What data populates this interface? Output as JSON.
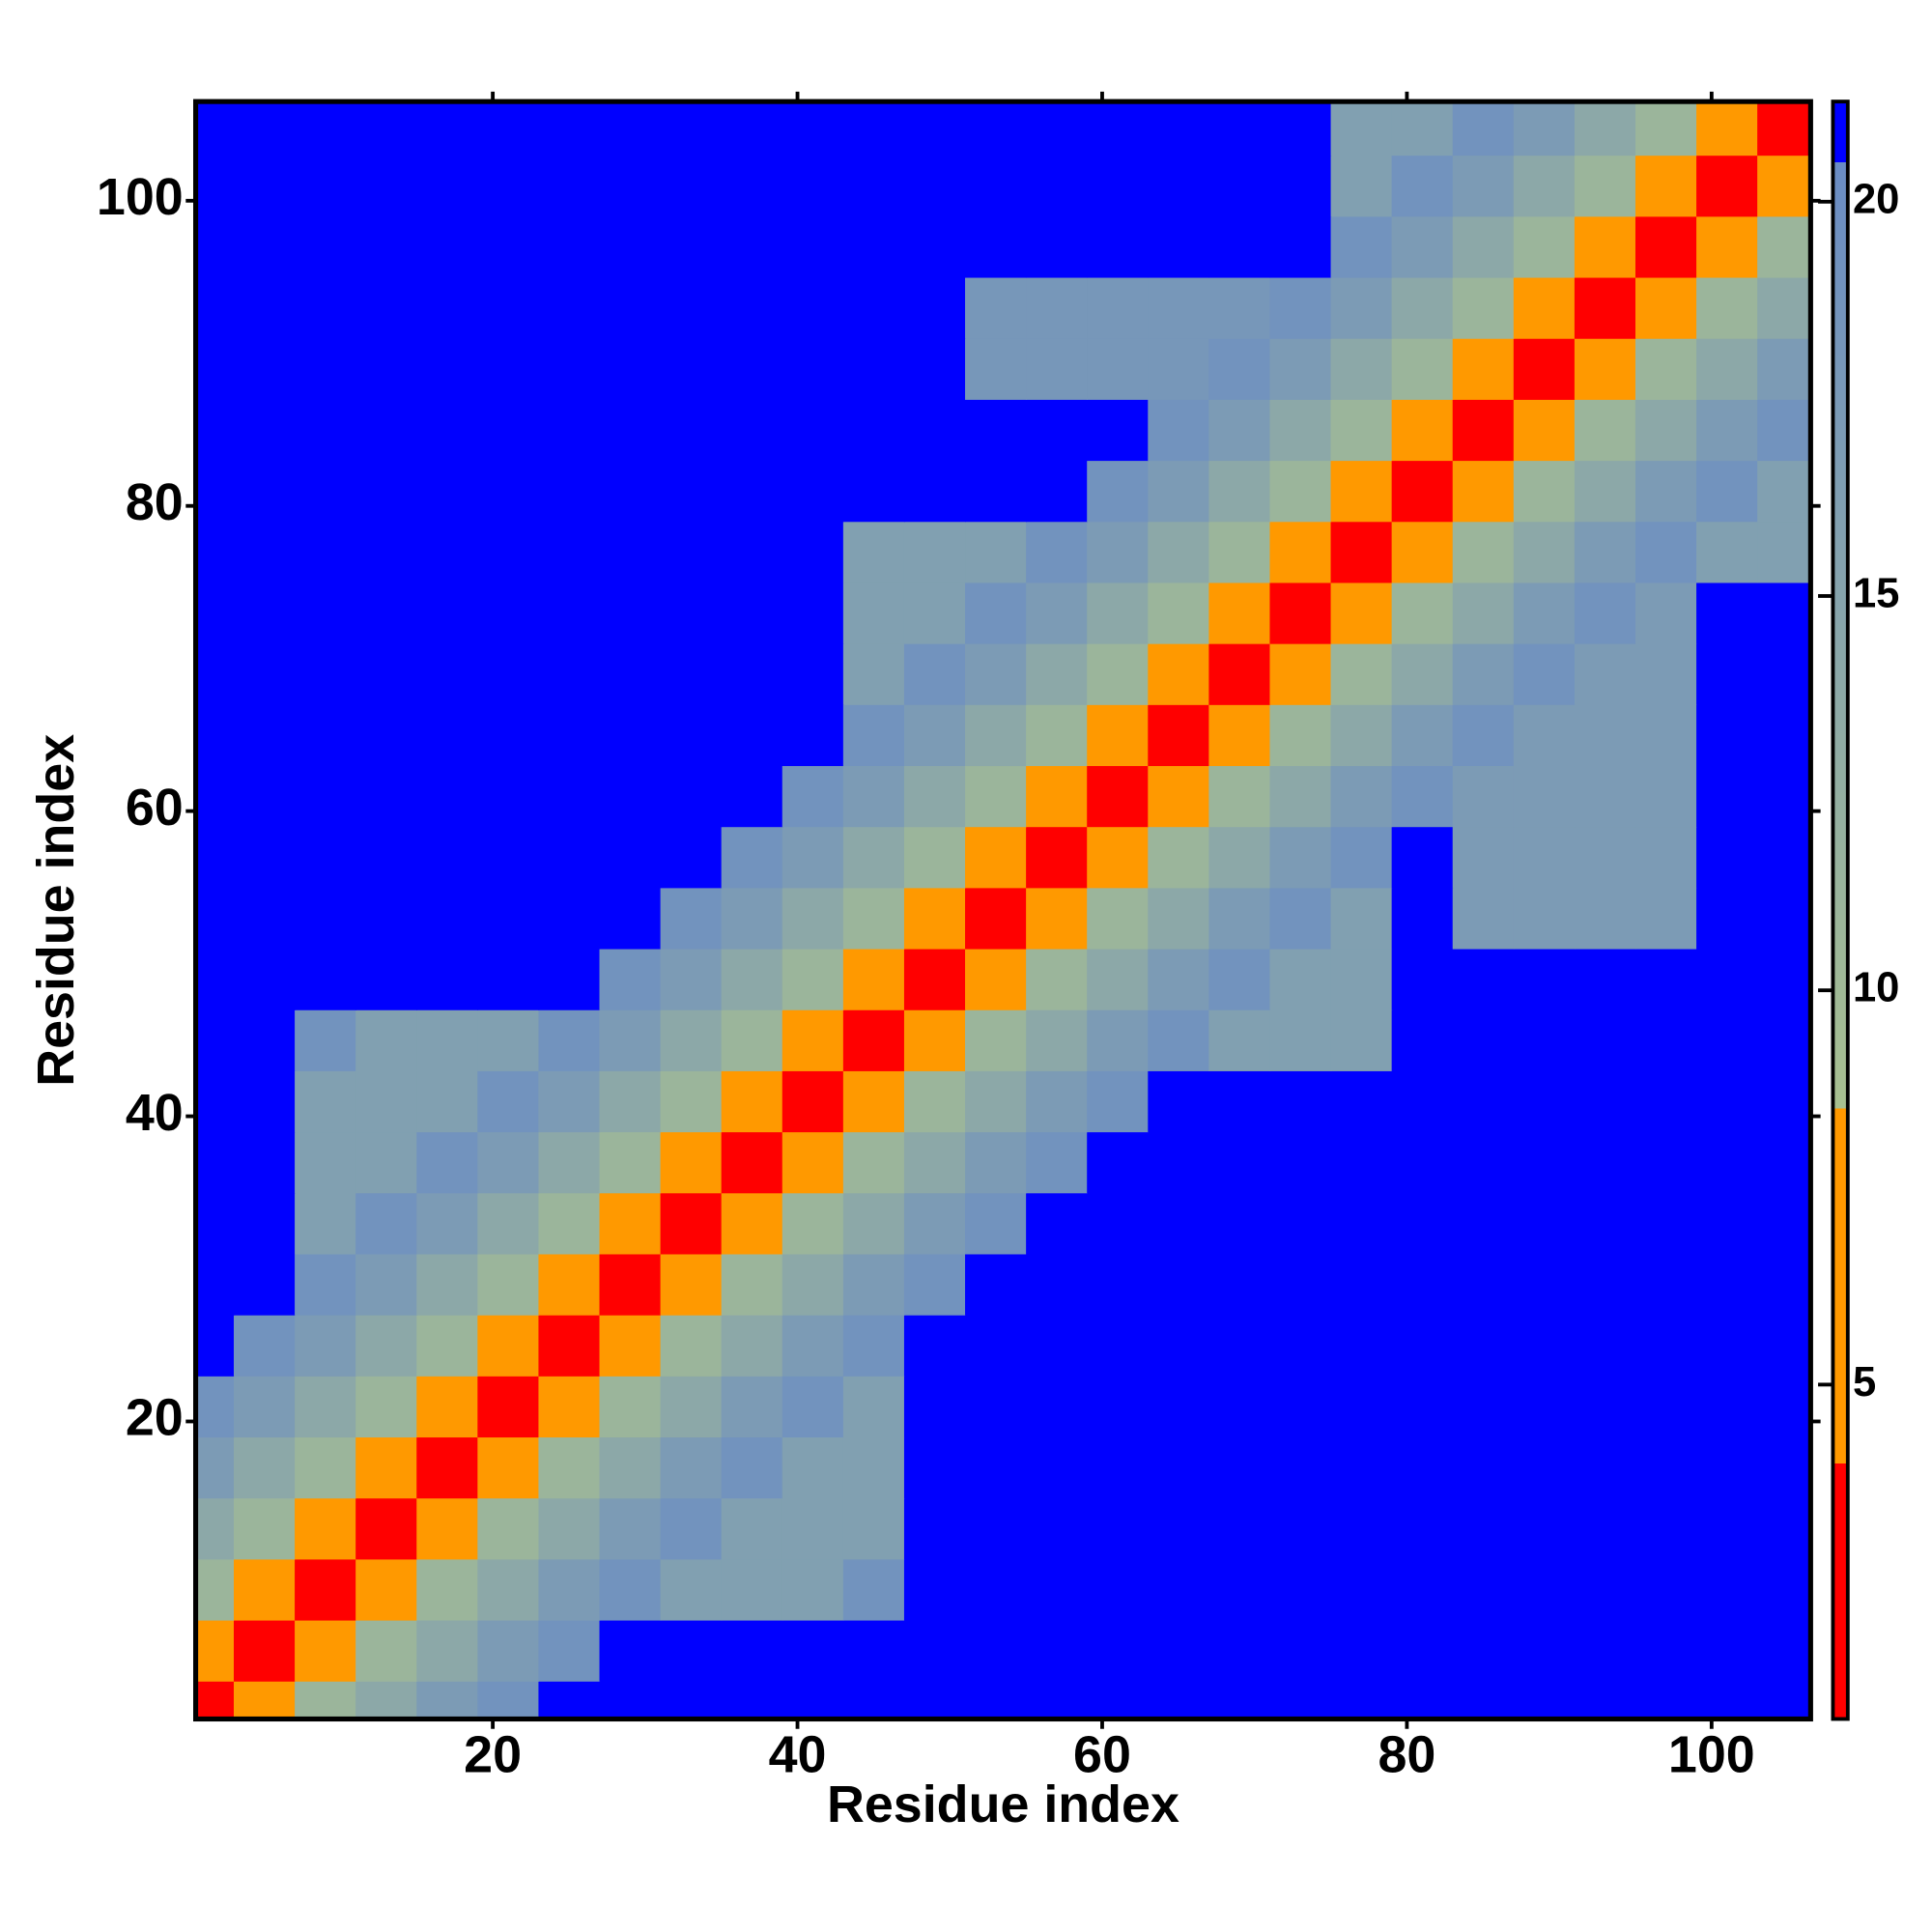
{
  "chart_data": {
    "type": "heatmap",
    "xlabel": "Residue index",
    "ylabel": "Residue index",
    "x": [
      1,
      5,
      9,
      13,
      17,
      21,
      25,
      29,
      33,
      37,
      41,
      45,
      49,
      53,
      57,
      61,
      65,
      69,
      73,
      77,
      81,
      85,
      89,
      93,
      97,
      101,
      105
    ],
    "y": [
      1,
      5,
      9,
      13,
      17,
      21,
      25,
      29,
      33,
      37,
      41,
      45,
      49,
      53,
      57,
      61,
      65,
      69,
      73,
      77,
      81,
      85,
      89,
      93,
      97,
      101,
      105
    ],
    "xlim": [
      0.5,
      106.5
    ],
    "ylim": [
      0.5,
      106.5
    ],
    "xticks": [
      20,
      40,
      60,
      80,
      100
    ],
    "yticks": [
      20,
      40,
      60,
      80,
      100
    ],
    "values": [
      [
        3,
        7,
        11,
        14,
        17,
        19,
        25,
        25,
        25,
        25,
        25,
        25,
        25,
        25,
        25,
        25,
        25,
        25,
        25,
        25,
        25,
        25,
        25,
        25,
        25,
        25,
        25
      ],
      [
        7,
        3,
        7,
        11,
        14,
        17,
        19,
        25,
        25,
        25,
        25,
        25,
        25,
        25,
        25,
        25,
        25,
        25,
        25,
        25,
        25,
        25,
        25,
        25,
        25,
        25,
        25
      ],
      [
        11,
        7,
        3,
        7,
        11,
        14,
        17,
        19,
        16,
        16,
        16,
        19,
        25,
        25,
        25,
        25,
        25,
        25,
        25,
        25,
        25,
        25,
        25,
        25,
        25,
        25,
        25
      ],
      [
        14,
        11,
        7,
        3,
        7,
        11,
        14,
        17,
        19,
        16,
        16,
        16,
        25,
        25,
        25,
        25,
        25,
        25,
        25,
        25,
        25,
        25,
        25,
        25,
        25,
        25,
        25
      ],
      [
        17,
        14,
        11,
        7,
        3,
        7,
        11,
        14,
        17,
        19,
        16,
        16,
        25,
        25,
        25,
        25,
        25,
        25,
        25,
        25,
        25,
        25,
        25,
        25,
        25,
        25,
        25
      ],
      [
        19,
        17,
        14,
        11,
        7,
        3,
        7,
        11,
        14,
        17,
        19,
        16,
        25,
        25,
        25,
        25,
        25,
        25,
        25,
        25,
        25,
        25,
        25,
        25,
        25,
        25,
        25
      ],
      [
        25,
        19,
        17,
        14,
        11,
        7,
        3,
        7,
        11,
        14,
        17,
        19,
        25,
        25,
        25,
        25,
        25,
        25,
        25,
        25,
        25,
        25,
        25,
        25,
        25,
        25,
        25
      ],
      [
        25,
        25,
        19,
        17,
        14,
        11,
        7,
        3,
        7,
        11,
        14,
        17,
        19,
        25,
        25,
        25,
        25,
        25,
        25,
        25,
        25,
        25,
        25,
        25,
        25,
        25,
        25
      ],
      [
        25,
        25,
        16,
        19,
        17,
        14,
        11,
        7,
        3,
        7,
        11,
        14,
        17,
        19,
        25,
        25,
        25,
        25,
        25,
        25,
        25,
        25,
        25,
        25,
        25,
        25,
        25
      ],
      [
        25,
        25,
        16,
        16,
        19,
        17,
        14,
        11,
        7,
        3,
        7,
        11,
        14,
        17,
        19,
        25,
        25,
        25,
        25,
        25,
        25,
        25,
        25,
        25,
        25,
        25,
        25
      ],
      [
        25,
        25,
        16,
        16,
        16,
        19,
        17,
        14,
        11,
        7,
        3,
        7,
        11,
        14,
        17,
        19,
        25,
        25,
        25,
        25,
        25,
        25,
        25,
        25,
        25,
        25,
        25
      ],
      [
        25,
        25,
        19,
        16,
        16,
        16,
        19,
        17,
        14,
        11,
        7,
        3,
        7,
        11,
        14,
        17,
        19,
        16,
        16,
        16,
        25,
        25,
        25,
        25,
        25,
        25,
        25
      ],
      [
        25,
        25,
        25,
        25,
        25,
        25,
        25,
        19,
        17,
        14,
        11,
        7,
        3,
        7,
        11,
        14,
        17,
        19,
        16,
        16,
        25,
        25,
        25,
        25,
        25,
        25,
        25
      ],
      [
        25,
        25,
        25,
        25,
        25,
        25,
        25,
        25,
        19,
        17,
        14,
        11,
        7,
        3,
        7,
        11,
        14,
        17,
        19,
        16,
        25,
        17,
        17,
        17,
        17,
        25,
        25
      ],
      [
        25,
        25,
        25,
        25,
        25,
        25,
        25,
        25,
        25,
        19,
        17,
        14,
        11,
        7,
        3,
        7,
        11,
        14,
        17,
        19,
        25,
        17,
        17,
        17,
        17,
        25,
        25
      ],
      [
        25,
        25,
        25,
        25,
        25,
        25,
        25,
        25,
        25,
        25,
        19,
        17,
        14,
        11,
        7,
        3,
        7,
        11,
        14,
        17,
        19,
        17,
        17,
        17,
        17,
        25,
        25
      ],
      [
        25,
        25,
        25,
        25,
        25,
        25,
        25,
        25,
        25,
        25,
        25,
        19,
        17,
        14,
        11,
        7,
        3,
        7,
        11,
        14,
        17,
        19,
        17,
        17,
        17,
        25,
        25
      ],
      [
        25,
        25,
        25,
        25,
        25,
        25,
        25,
        25,
        25,
        25,
        25,
        16,
        19,
        17,
        14,
        11,
        7,
        3,
        7,
        11,
        14,
        17,
        19,
        17,
        17,
        25,
        25
      ],
      [
        25,
        25,
        25,
        25,
        25,
        25,
        25,
        25,
        25,
        25,
        25,
        16,
        16,
        19,
        17,
        14,
        11,
        7,
        3,
        7,
        11,
        14,
        17,
        19,
        17,
        25,
        25
      ],
      [
        25,
        25,
        25,
        25,
        25,
        25,
        25,
        25,
        25,
        25,
        25,
        16,
        16,
        16,
        19,
        17,
        14,
        11,
        7,
        3,
        7,
        11,
        14,
        17,
        19,
        16,
        16
      ],
      [
        25,
        25,
        25,
        25,
        25,
        25,
        25,
        25,
        25,
        25,
        25,
        25,
        25,
        25,
        25,
        19,
        17,
        14,
        11,
        7,
        3,
        7,
        11,
        14,
        17,
        19,
        16
      ],
      [
        25,
        25,
        25,
        25,
        25,
        25,
        25,
        25,
        25,
        25,
        25,
        25,
        25,
        25,
        25,
        25,
        19,
        17,
        14,
        11,
        7,
        3,
        7,
        11,
        14,
        17,
        19
      ],
      [
        25,
        25,
        25,
        25,
        25,
        25,
        25,
        25,
        25,
        25,
        25,
        25,
        25,
        18,
        18,
        18,
        18,
        19,
        17,
        14,
        11,
        7,
        3,
        7,
        11,
        14,
        17
      ],
      [
        25,
        25,
        25,
        25,
        25,
        25,
        25,
        25,
        25,
        25,
        25,
        25,
        25,
        18,
        18,
        18,
        18,
        18,
        19,
        17,
        14,
        11,
        7,
        3,
        7,
        11,
        14
      ],
      [
        25,
        25,
        25,
        25,
        25,
        25,
        25,
        25,
        25,
        25,
        25,
        25,
        25,
        25,
        25,
        25,
        25,
        25,
        25,
        19,
        17,
        14,
        11,
        7,
        3,
        7,
        11
      ],
      [
        25,
        25,
        25,
        25,
        25,
        25,
        25,
        25,
        25,
        25,
        25,
        25,
        25,
        25,
        25,
        25,
        25,
        25,
        25,
        16,
        19,
        17,
        14,
        11,
        7,
        3,
        7
      ],
      [
        25,
        25,
        25,
        25,
        25,
        25,
        25,
        25,
        25,
        25,
        25,
        25,
        25,
        25,
        25,
        25,
        25,
        25,
        25,
        16,
        16,
        19,
        17,
        14,
        11,
        7,
        3
      ]
    ],
    "colorscale": [
      [
        0.76,
        "#ff0000"
      ],
      [
        4,
        "#ff0000"
      ],
      [
        4,
        "#ff9900"
      ],
      [
        8.5,
        "#ff9900"
      ],
      [
        8.5,
        "#a8c090"
      ],
      [
        20.5,
        "#6a8cc4"
      ],
      [
        20.5,
        "#0000ff"
      ],
      [
        21.27,
        "#0000ff"
      ]
    ],
    "colorbar": {
      "lim": [
        0.76,
        21.27
      ],
      "ticks": [
        5,
        10,
        15,
        20
      ]
    }
  }
}
